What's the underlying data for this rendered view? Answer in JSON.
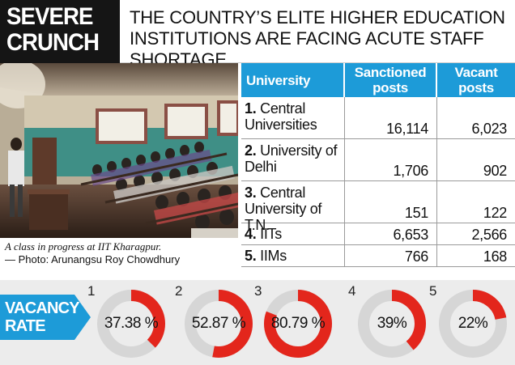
{
  "header": {
    "tag_line1": "SEVERE",
    "tag_line2": "CRUNCH",
    "headline": "THE COUNTRY’S ELITE HIGHER EDUCATION INSTITUTIONS ARE FACING ACUTE STAFF SHORTAGE"
  },
  "photo": {
    "caption": "A class in progress at IIT Kharagpur.",
    "credit": "— Photo: Arunangsu Roy Chowdhury"
  },
  "table": {
    "headers": {
      "university": "University",
      "sanctioned": "Sanctioned posts",
      "vacant": "Vacant posts"
    },
    "rows": [
      {
        "num": "1.",
        "name": "Central Universities",
        "sanctioned": "16,114",
        "vacant": "6,023"
      },
      {
        "num": "2.",
        "name": "University of Delhi",
        "sanctioned": "1,706",
        "vacant": "902"
      },
      {
        "num": "3.",
        "name": "Central University of T.N.",
        "sanctioned": "151",
        "vacant": "122"
      },
      {
        "num": "4.",
        "name": "IITs",
        "sanctioned": "6,653",
        "vacant": "2,566"
      },
      {
        "num": "5.",
        "name": "IIMs",
        "sanctioned": "766",
        "vacant": "168"
      }
    ]
  },
  "vacancy": {
    "label_line1": "VACANCY",
    "label_line2": "RATE",
    "items": [
      {
        "index": "1",
        "value": 37.38,
        "label": "37.38 %"
      },
      {
        "index": "2",
        "value": 52.87,
        "label": "52.87 %"
      },
      {
        "index": "3",
        "value": 80.79,
        "label": "80.79 %"
      },
      {
        "index": "4",
        "value": 39,
        "label": "39%"
      },
      {
        "index": "5",
        "value": 22,
        "label": "22%"
      }
    ]
  },
  "colors": {
    "accent_blue": "#1d9bd8",
    "ring_red": "#e3261c",
    "ring_grey": "#d6d6d6",
    "dark": "#151515"
  }
}
